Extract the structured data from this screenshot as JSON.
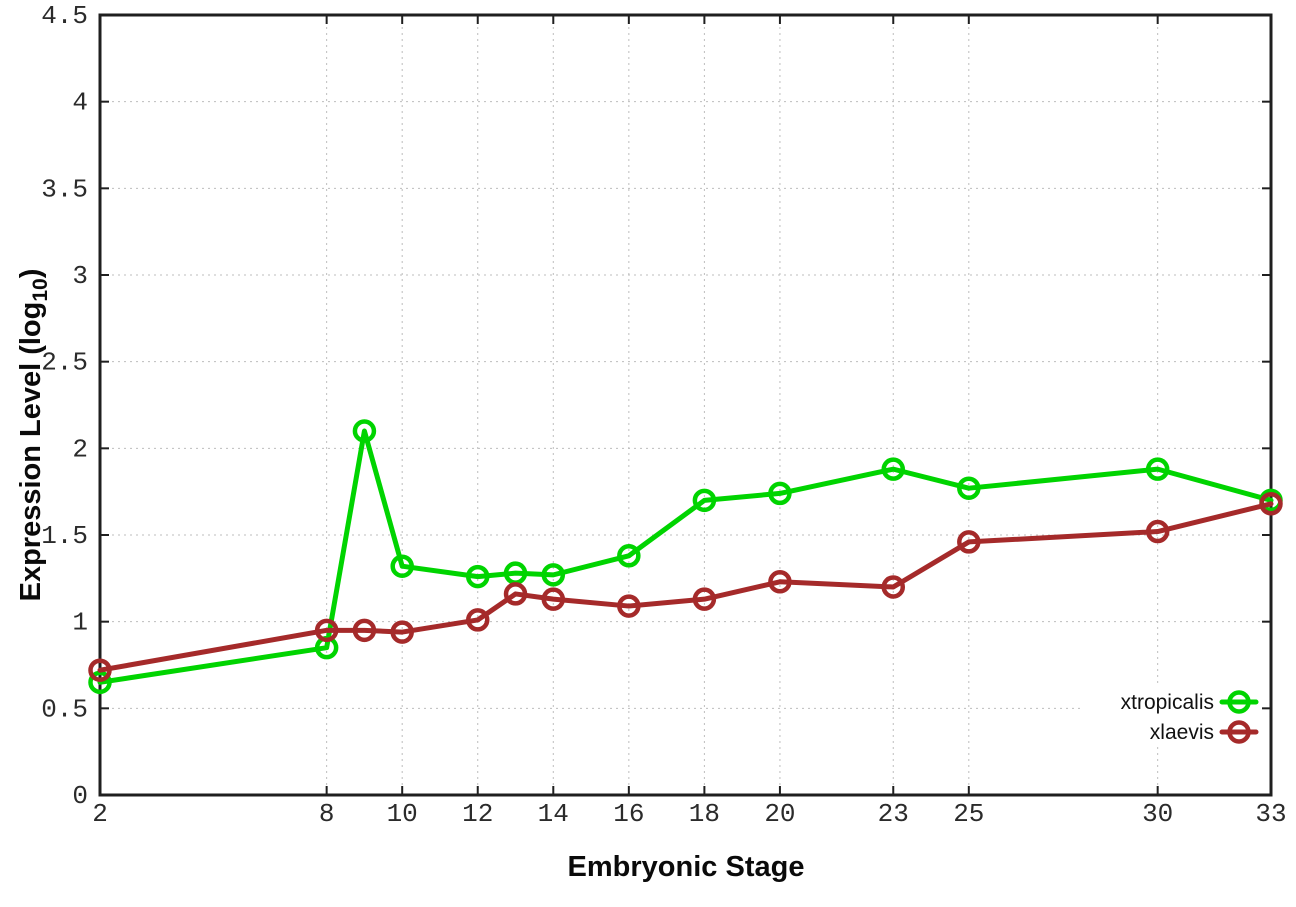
{
  "chart_data": {
    "type": "line",
    "title": "",
    "xlabel": "Embryonic Stage",
    "ylabel": "Expression Level (log10)",
    "ylabel_rich": {
      "main": "Expression Level (log",
      "sub": "10",
      "close": ")"
    },
    "xlim": [
      2,
      33
    ],
    "ylim": [
      0,
      4.5
    ],
    "grid": "dotted",
    "legend_position": "inside-bottom-right",
    "x": [
      2,
      8,
      9,
      10,
      12,
      13,
      14,
      16,
      18,
      20,
      23,
      25,
      30,
      33
    ],
    "x_ticks": {
      "values": [
        2,
        8,
        10,
        12,
        14,
        16,
        18,
        20,
        23,
        25,
        30,
        33
      ],
      "labels": [
        "2",
        "8",
        "10",
        "12",
        "14",
        "16",
        "18",
        "20",
        "23",
        "25",
        "30",
        "33"
      ]
    },
    "y_ticks": {
      "values": [
        0,
        0.5,
        1,
        1.5,
        2,
        2.5,
        3,
        3.5,
        4,
        4.5
      ],
      "labels": [
        "0",
        "0.5",
        "1",
        "1.5",
        "2",
        "2.5",
        "3",
        "3.5",
        "4",
        "4.5"
      ]
    },
    "series": [
      {
        "name": "xtropicalis",
        "color": "#00d400",
        "marker": "open-circle",
        "values": [
          0.65,
          0.85,
          2.1,
          1.32,
          1.26,
          1.28,
          1.27,
          1.38,
          1.7,
          1.74,
          1.88,
          1.77,
          1.88,
          1.7
        ]
      },
      {
        "name": "xlaevis",
        "color": "#a52a2a",
        "marker": "open-circle",
        "values": [
          0.72,
          0.95,
          0.95,
          0.94,
          1.01,
          1.16,
          1.13,
          1.09,
          1.13,
          1.23,
          1.2,
          1.46,
          1.52,
          1.68
        ]
      }
    ]
  },
  "colors": {
    "background": "#ffffff",
    "axis": "#1f1f1f",
    "grid": "#bdbdbd",
    "tick_text": "#2b2b2b"
  }
}
